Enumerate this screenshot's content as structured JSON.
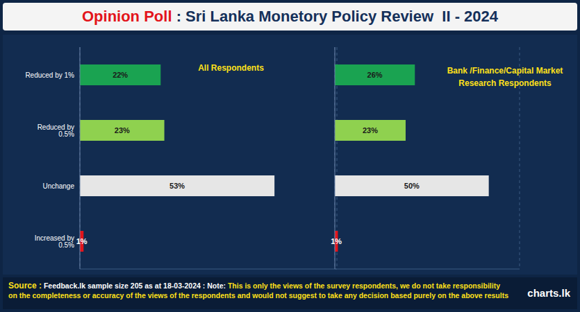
{
  "title": {
    "highlight": "Opinion Poll",
    "text": ": Sri Lanka Monetory Policy Review  II - 2024"
  },
  "chart_data": [
    {
      "type": "bar",
      "orientation": "horizontal",
      "subtitle": "All Respondents",
      "categories": [
        "Reduced by 1%",
        "Reduced by 0.5%",
        "Unchange",
        "Increased by 0.5%"
      ],
      "values": [
        22,
        23,
        53,
        1
      ],
      "value_labels": [
        "22%",
        "23%",
        "53%",
        "1%"
      ],
      "colors": [
        "#1aa351",
        "#8fd14f",
        "#e6e6e6",
        "#e3141b"
      ],
      "xlim": [
        0,
        70
      ],
      "xticks": [
        0,
        10,
        20,
        30,
        40,
        50,
        60,
        70
      ],
      "grid": true,
      "data_labels": true,
      "tick_labels": "y"
    },
    {
      "type": "bar",
      "orientation": "horizontal",
      "subtitle": "Bank /Finance/Capital Market Research Respondents",
      "categories": [
        null,
        null,
        null,
        null
      ],
      "values": [
        26,
        23,
        50,
        1
      ],
      "value_labels": [
        "26%",
        "23%",
        "50%",
        "1%"
      ],
      "colors": [
        "#1aa351",
        "#8fd14f",
        "#e6e6e6",
        "#e3141b"
      ],
      "xlim": [
        0,
        60
      ],
      "xticks": [
        0,
        10,
        20,
        30,
        40,
        50,
        60
      ],
      "grid": true,
      "data_labels": true,
      "tick_labels": false
    }
  ],
  "footer": {
    "source_label": "Source :",
    "source": "Feedback.lk sample size 205 as at 18-03-2024 :",
    "note_label": "Note:",
    "note": "This is only the views of the survey respondents, we do not take responsibility on the completeness or accuracy of the views  of the respondents and  would not suggest to take any decision based purely on the above results"
  },
  "watermark": "charts.lk"
}
